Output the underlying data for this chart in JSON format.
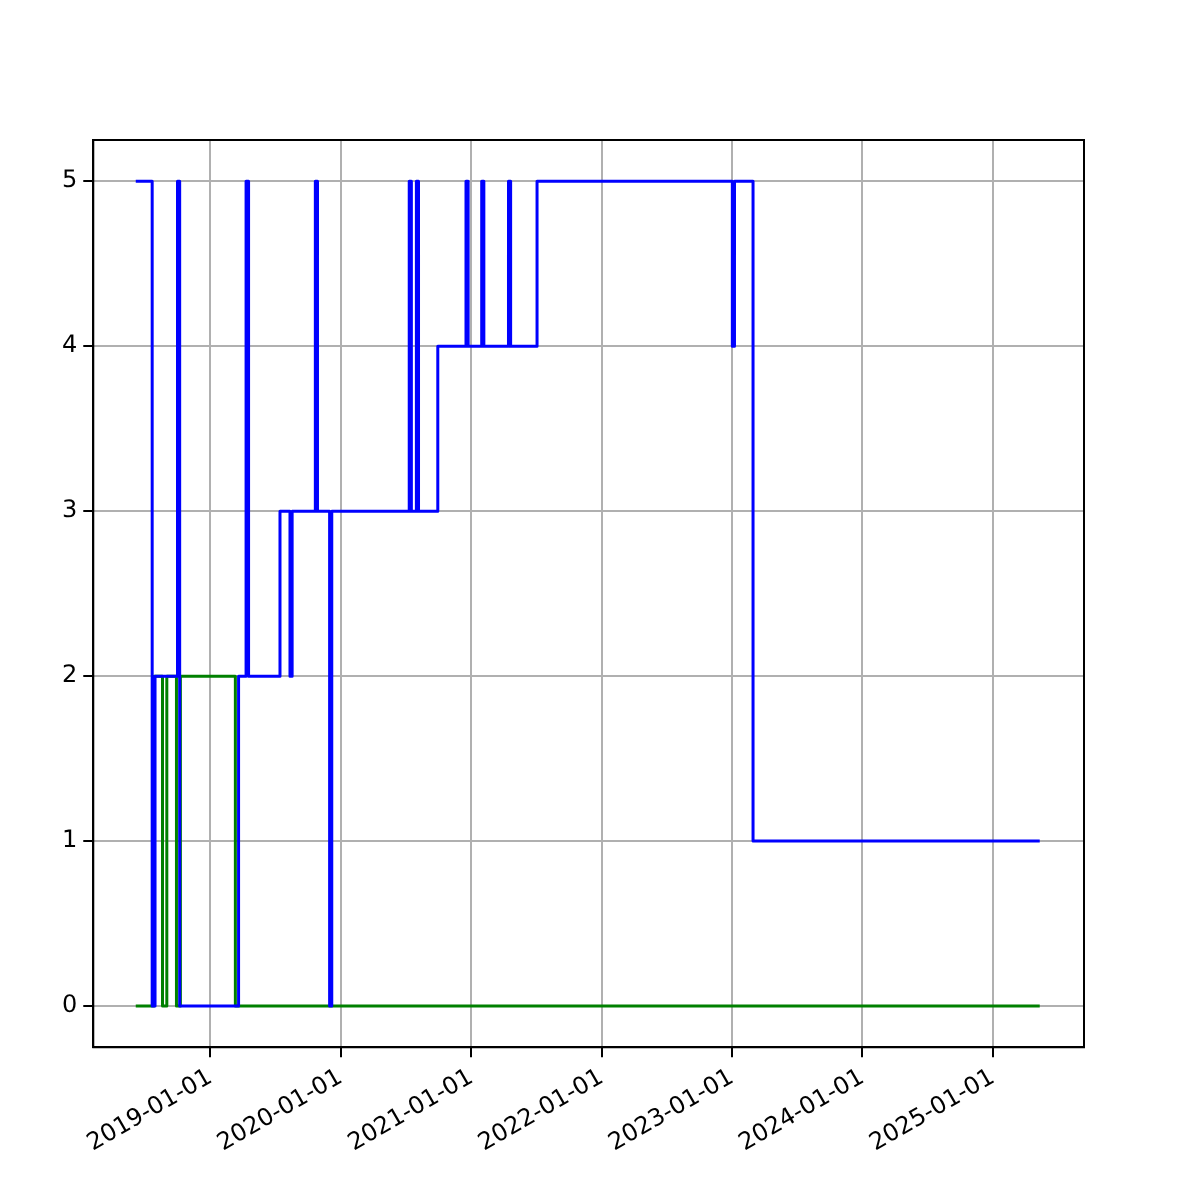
{
  "chart_data": {
    "type": "step",
    "xlim": [
      "2018-02-07",
      "2025-09-13"
    ],
    "ylim": [
      -0.25,
      5.25
    ],
    "xticks": [
      "2019-01-01",
      "2020-01-01",
      "2021-01-01",
      "2022-01-01",
      "2023-01-01",
      "2024-01-01",
      "2025-01-01"
    ],
    "yticks": [
      0,
      1,
      2,
      3,
      4,
      5
    ],
    "grid": true,
    "legend": false,
    "line_style": "solid",
    "marker": "none",
    "series": [
      {
        "color": "#0000ff",
        "x": [
          "2018-06-06",
          "2018-07-22",
          "2018-07-30",
          "2018-10-01",
          "2018-10-07",
          "2019-03-21",
          "2019-04-11",
          "2019-04-18",
          "2019-07-15",
          "2019-08-12",
          "2019-08-18",
          "2019-10-22",
          "2019-10-28",
          "2019-12-01",
          "2019-12-07",
          "2020-07-11",
          "2020-07-17",
          "2020-07-31",
          "2020-08-06",
          "2020-09-29",
          "2020-12-17",
          "2020-12-23",
          "2021-01-30",
          "2021-02-05",
          "2021-04-15",
          "2021-04-21",
          "2021-07-04",
          "2023-01-02",
          "2023-01-08",
          "2023-03-01",
          "2025-05-12"
        ],
        "values": [
          5,
          0,
          2,
          5,
          0,
          2,
          5,
          2,
          3,
          2,
          3,
          5,
          3,
          0,
          3,
          5,
          3,
          5,
          3,
          4,
          5,
          4,
          5,
          4,
          5,
          4,
          5,
          4,
          5,
          1,
          1
        ]
      },
      {
        "color": "#008000",
        "x": [
          "2018-06-06",
          "2018-07-27",
          "2018-08-20",
          "2018-09-01",
          "2018-09-28",
          "2018-10-09",
          "2019-03-12",
          "2025-05-12"
        ],
        "values": [
          0,
          2,
          0,
          2,
          0,
          2,
          0,
          0
        ]
      }
    ]
  }
}
